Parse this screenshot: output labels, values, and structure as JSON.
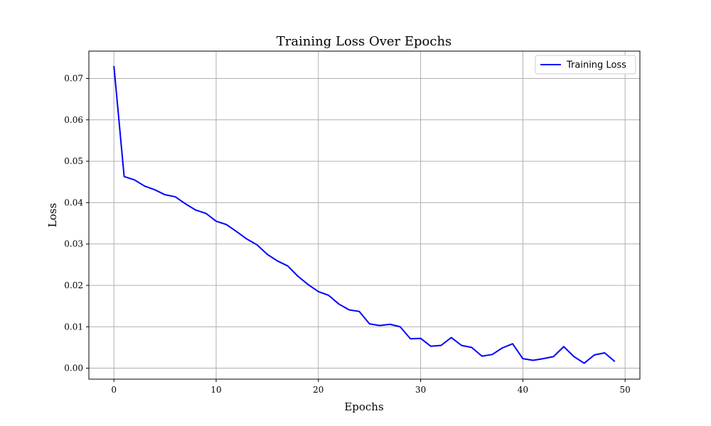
{
  "chart_data": {
    "type": "line",
    "title": "Training Loss Over Epochs",
    "xlabel": "Epochs",
    "ylabel": "Loss",
    "xlim": [
      -2.45,
      51.45
    ],
    "ylim": [
      -0.00265,
      0.0766
    ],
    "x_ticks": [
      0,
      10,
      20,
      30,
      40,
      50
    ],
    "x_tick_labels": [
      "0",
      "10",
      "20",
      "30",
      "40",
      "50"
    ],
    "y_ticks": [
      0.0,
      0.01,
      0.02,
      0.03,
      0.04,
      0.05,
      0.06,
      0.07
    ],
    "y_tick_labels": [
      "0.00",
      "0.01",
      "0.02",
      "0.03",
      "0.04",
      "0.05",
      "0.06",
      "0.07"
    ],
    "grid": true,
    "legend_position": "top-right",
    "series": [
      {
        "name": "Training Loss",
        "color": "#0000ff",
        "x": [
          0,
          1,
          2,
          3,
          4,
          5,
          6,
          7,
          8,
          9,
          10,
          11,
          12,
          13,
          14,
          15,
          16,
          17,
          18,
          19,
          20,
          21,
          22,
          23,
          24,
          25,
          26,
          27,
          28,
          29,
          30,
          31,
          32,
          33,
          34,
          35,
          36,
          37,
          38,
          39,
          40,
          41,
          42,
          43,
          44,
          45,
          46,
          47,
          48,
          49
        ],
        "y": [
          0.073,
          0.0463,
          0.0455,
          0.044,
          0.0431,
          0.0419,
          0.0414,
          0.0397,
          0.0382,
          0.0374,
          0.0355,
          0.0347,
          0.033,
          0.0312,
          0.0298,
          0.0275,
          0.0259,
          0.0247,
          0.0222,
          0.0202,
          0.0185,
          0.0176,
          0.0155,
          0.0141,
          0.0137,
          0.0107,
          0.0103,
          0.0106,
          0.01,
          0.0071,
          0.0072,
          0.0053,
          0.0055,
          0.0074,
          0.0055,
          0.005,
          0.0029,
          0.0033,
          0.0049,
          0.0059,
          0.0023,
          0.0019,
          0.0023,
          0.0028,
          0.0052,
          0.0028,
          0.0012,
          0.0032,
          0.0037,
          0.0016
        ]
      }
    ]
  }
}
